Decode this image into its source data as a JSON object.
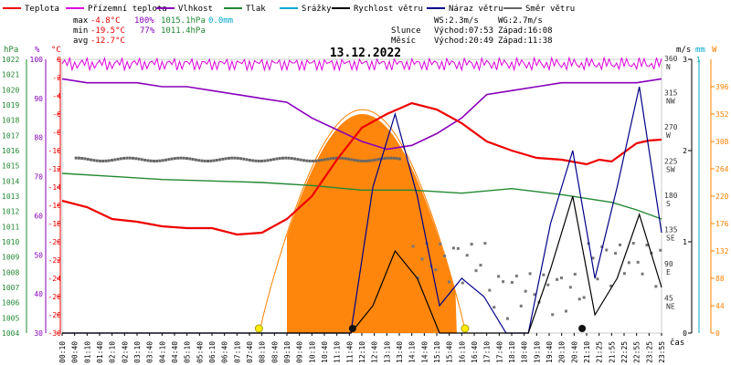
{
  "chart_data": {
    "type": "line",
    "title": "13.12.2022",
    "legend": [
      {
        "name": "Teplota",
        "color": "#ee0000"
      },
      {
        "name": "Přízemní teplota",
        "color": "#dd00dd"
      },
      {
        "name": "Vlhkost",
        "color": "#8800bb"
      },
      {
        "name": "Tlak",
        "color": "#228833"
      },
      {
        "name": "Srážky",
        "color": "#00aacc"
      },
      {
        "name": "Rychlost větru",
        "color": "#000000"
      },
      {
        "name": "Náraz větru",
        "color": "#000088"
      },
      {
        "name": "Směr větru",
        "color": "#666666"
      }
    ],
    "stats": {
      "max_label": "max",
      "max_temp": "-4.8°C",
      "max_hum": "100%",
      "max_press": "1015.1hPa",
      "max_rain": "0.0mm",
      "min_label": "min",
      "min_temp": "-19.5°C",
      "min_hum": "77%",
      "min_press": "1011.4hPa",
      "avg_label": "avg",
      "avg_temp": "-12.7°C"
    },
    "info": {
      "wind_speed": "WS:2.3m/s",
      "wind_gust": "WG:2.7m/s",
      "sun_label": "Slunce",
      "sunrise": "Východ:07:53",
      "sunset": "Západ:16:08",
      "moon_label": "Měsíc",
      "moonrise": "Východ:20:49",
      "moonset": "Západ:11:38"
    },
    "axes": {
      "hpa_unit": "hPa",
      "pct_unit": "%",
      "temp_unit": "°C",
      "ms_unit": "m/s",
      "mm_unit": "mm",
      "w_unit": "W",
      "x_unit": "čas",
      "pressure": {
        "min": 1004,
        "max": 1022,
        "ticks": [
          1022,
          1021,
          1020,
          1019,
          1018,
          1017,
          1016,
          1015,
          1014,
          1013,
          1012,
          1011,
          1010,
          1009,
          1008,
          1007,
          1006,
          1005,
          1004
        ]
      },
      "humidity": {
        "min": 30,
        "max": 100,
        "ticks": [
          100,
          90,
          80,
          70,
          60,
          50,
          40,
          30
        ]
      },
      "temperature": {
        "min": -30,
        "max": 0,
        "ticks": [
          0,
          -2,
          -4,
          -6,
          -8,
          -10,
          -12,
          -14,
          -16,
          -18,
          -20,
          -22,
          -24,
          -26,
          -28,
          -30
        ]
      },
      "direction": {
        "ticks": [
          {
            "deg": 360,
            "label": "N"
          },
          {
            "deg": 315,
            "label": "NW"
          },
          {
            "deg": 270,
            "label": "W"
          },
          {
            "deg": 225,
            "label": "SW"
          },
          {
            "deg": 180,
            "label": "S"
          },
          {
            "deg": 135,
            "label": "SE"
          },
          {
            "deg": 90,
            "label": "E"
          },
          {
            "deg": 45,
            "label": "NE"
          }
        ]
      },
      "wind": {
        "min": 0,
        "max": 3,
        "ticks": [
          3,
          2,
          1,
          0
        ]
      },
      "rain": {
        "ticks": [
          "1"
        ]
      },
      "solar": {
        "min": 0,
        "max": 440,
        "ticks": [
          396,
          352,
          308,
          264,
          220,
          176,
          132,
          88,
          44,
          0
        ]
      },
      "x_ticks": [
        "00:10",
        "00:40",
        "01:10",
        "01:40",
        "02:10",
        "02:40",
        "03:10",
        "03:40",
        "04:10",
        "04:40",
        "05:10",
        "05:40",
        "06:10",
        "06:40",
        "07:10",
        "07:40",
        "08:10",
        "08:40",
        "09:10",
        "09:40",
        "10:10",
        "10:40",
        "11:10",
        "11:40",
        "12:10",
        "12:40",
        "13:10",
        "13:40",
        "14:10",
        "14:40",
        "15:10",
        "15:40",
        "16:10",
        "16:40",
        "17:10",
        "17:40",
        "18:10",
        "18:40",
        "19:10",
        "19:40",
        "20:10",
        "20:40",
        "21:10",
        "21:25",
        "21:55",
        "22:25",
        "22:55",
        "23:25",
        "23:55"
      ]
    },
    "series": {
      "temperature": {
        "hours": [
          0,
          1,
          2,
          3,
          4,
          5,
          6,
          7,
          8,
          9,
          10,
          11,
          12,
          13,
          14,
          15,
          16,
          17,
          18,
          19,
          20,
          21,
          21.5,
          22,
          22.5,
          23,
          23.5,
          24
        ],
        "values": [
          -15.5,
          -16.2,
          -17.5,
          -17.8,
          -18.3,
          -18.5,
          -18.5,
          -19.2,
          -19,
          -17.5,
          -15,
          -11,
          -7.5,
          -6,
          -4.8,
          -5.5,
          -7,
          -9,
          -10,
          -10.8,
          -11,
          -11.5,
          -11,
          -11.2,
          -10.2,
          -9.2,
          -8.9,
          -8.8
        ]
      },
      "humidity": {
        "hours": [
          0,
          1,
          2,
          3,
          4,
          5,
          6,
          7,
          8,
          9,
          10,
          11,
          12,
          13,
          14,
          15,
          16,
          17,
          18,
          19,
          20,
          21,
          22,
          23,
          24
        ],
        "values": [
          95,
          94,
          94,
          94,
          93,
          93,
          92,
          91,
          90,
          89,
          85,
          82,
          79,
          77,
          78,
          81,
          85,
          91,
          92,
          93,
          94,
          94,
          94,
          94,
          95
        ]
      },
      "pressure": {
        "hours": [
          0,
          2,
          4,
          6,
          8,
          10,
          12,
          14,
          16,
          18,
          20,
          22,
          23,
          24
        ],
        "values": [
          1014.5,
          1014.3,
          1014.1,
          1014,
          1013.9,
          1013.7,
          1013.4,
          1013.4,
          1013.2,
          1013.5,
          1013.1,
          1012.6,
          1012.1,
          1011.5
        ]
      },
      "ground_temperature": {
        "mean": -0.5
      },
      "direction_morning": {
        "hours": [
          0.5,
          13.5
        ],
        "value": 230
      },
      "solar": {
        "start": 7.9,
        "end": 16.15,
        "peak_hour": 12.0,
        "peak": 352
      },
      "wind_speed": [
        0,
        0,
        0,
        0,
        0,
        0,
        0,
        0,
        0,
        0,
        0,
        0,
        0,
        0,
        0.3,
        0.9,
        0.6,
        0,
        0,
        0,
        0,
        0,
        0.7,
        1.5,
        0.2,
        0.6,
        1.3,
        0.5
      ],
      "wind_gust": [
        0,
        0,
        0,
        0,
        0,
        0,
        0,
        0,
        0,
        0,
        0,
        0,
        0,
        0,
        1.6,
        2.4,
        1.5,
        0.3,
        0.6,
        0.4,
        0,
        0,
        1.2,
        2.0,
        0.6,
        1.6,
        2.7,
        1.1
      ]
    },
    "markers": {
      "sunrise_hour": 7.88,
      "sunset_hour": 16.13,
      "moonrise_hour": 20.82,
      "moonset_hour": 11.63
    }
  }
}
